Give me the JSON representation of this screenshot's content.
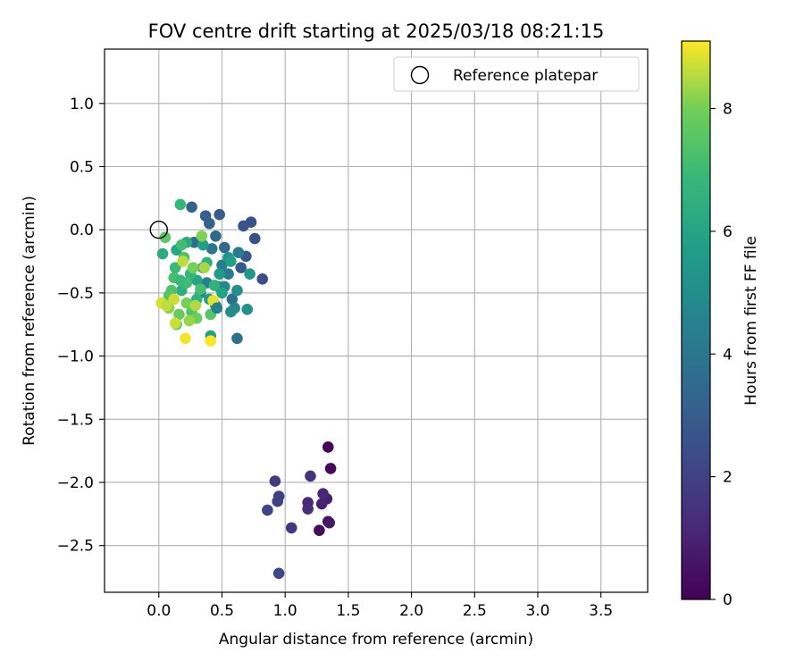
{
  "chart_data": {
    "type": "scatter",
    "title": "FOV centre drift starting at 2025/03/18 08:21:15",
    "xlabel": "Angular distance from reference (arcmin)",
    "ylabel": "Rotation from reference (arcmin)",
    "xlim": [
      -0.43,
      3.87
    ],
    "ylim": [
      -2.87,
      1.43
    ],
    "xticks": [
      0.0,
      0.5,
      1.0,
      1.5,
      2.0,
      2.5,
      3.0,
      3.5
    ],
    "xtick_labels": [
      "0.0",
      "0.5",
      "1.0",
      "1.5",
      "2.0",
      "2.5",
      "3.0",
      "3.5"
    ],
    "yticks": [
      1.0,
      0.5,
      0.0,
      -0.5,
      -1.0,
      -1.5,
      -2.0,
      -2.5
    ],
    "ytick_labels": [
      "1.0",
      "0.5",
      "0.0",
      "−0.5",
      "−1.0",
      "−1.5",
      "−2.0",
      "−2.5"
    ],
    "grid": true,
    "legend": {
      "position": "upper-right",
      "entries": [
        "Reference platepar"
      ]
    },
    "colorbar": {
      "label": "Hours from first FF file",
      "colormap": "viridis",
      "range": [
        0,
        9.1
      ],
      "ticks": [
        0,
        2,
        4,
        6,
        8
      ],
      "tick_labels": [
        "0",
        "2",
        "4",
        "6",
        "8"
      ]
    },
    "reference": {
      "name": "Reference platepar",
      "x": 0.0,
      "y": 0.0
    },
    "series": [
      {
        "points": [
          [
            1.34,
            -1.72,
            0.1
          ],
          [
            1.36,
            -1.89,
            0.2
          ],
          [
            1.27,
            -2.38,
            0.3
          ],
          [
            1.34,
            -2.31,
            0.5
          ],
          [
            1.35,
            -2.32,
            0.6
          ],
          [
            1.33,
            -2.13,
            0.9
          ],
          [
            1.29,
            -2.17,
            1.0
          ],
          [
            1.3,
            -2.09,
            1.1
          ],
          [
            1.18,
            -2.16,
            1.2
          ],
          [
            1.18,
            -2.21,
            1.3
          ],
          [
            1.2,
            -1.95,
            1.5
          ],
          [
            1.05,
            -2.36,
            1.7
          ],
          [
            0.92,
            -1.99,
            1.8
          ],
          [
            0.95,
            -2.11,
            1.9
          ],
          [
            0.94,
            -2.15,
            2.0
          ],
          [
            0.86,
            -2.22,
            2.1
          ],
          [
            0.95,
            -2.72,
            2.2
          ],
          [
            0.82,
            -0.39,
            2.4
          ],
          [
            0.76,
            -0.07,
            2.5
          ],
          [
            0.73,
            0.06,
            2.6
          ],
          [
            0.67,
            0.03,
            2.7
          ],
          [
            0.69,
            -0.21,
            2.8
          ],
          [
            0.65,
            -0.3,
            2.9
          ],
          [
            0.48,
            0.12,
            3.0
          ],
          [
            0.37,
            0.11,
            3.1
          ],
          [
            0.26,
            0.18,
            3.2
          ],
          [
            0.4,
            0.05,
            3.3
          ],
          [
            0.45,
            -0.05,
            3.4
          ],
          [
            0.52,
            -0.14,
            3.5
          ],
          [
            0.28,
            -0.1,
            3.6
          ],
          [
            0.62,
            -0.86,
            3.7
          ],
          [
            0.58,
            -0.55,
            3.8
          ],
          [
            0.47,
            -0.45,
            3.9
          ],
          [
            0.42,
            -0.15,
            4.0
          ],
          [
            0.35,
            -0.3,
            4.1
          ],
          [
            0.55,
            -0.35,
            4.2
          ],
          [
            0.63,
            -0.18,
            4.3
          ],
          [
            0.5,
            -0.28,
            4.4
          ],
          [
            0.38,
            -0.42,
            4.5
          ],
          [
            0.45,
            -0.6,
            4.6
          ],
          [
            0.6,
            -0.62,
            4.7
          ],
          [
            0.52,
            -0.45,
            4.8
          ],
          [
            0.33,
            -0.5,
            4.9
          ],
          [
            0.57,
            -0.65,
            5.0
          ],
          [
            0.62,
            -0.48,
            5.1
          ],
          [
            0.7,
            -0.63,
            5.2
          ],
          [
            0.55,
            -0.22,
            5.3
          ],
          [
            0.72,
            -0.35,
            5.4
          ],
          [
            0.48,
            -0.35,
            5.5
          ],
          [
            0.4,
            -0.55,
            5.6
          ],
          [
            0.35,
            -0.12,
            5.7
          ],
          [
            0.57,
            -0.25,
            5.8
          ],
          [
            0.41,
            -0.84,
            5.9
          ],
          [
            0.3,
            -0.4,
            6.0
          ],
          [
            0.14,
            -0.16,
            6.1
          ],
          [
            0.22,
            -0.1,
            6.2
          ],
          [
            0.03,
            -0.19,
            6.3
          ],
          [
            0.18,
            -0.48,
            6.4
          ],
          [
            0.3,
            -0.55,
            6.5
          ],
          [
            0.38,
            -0.26,
            6.6
          ],
          [
            0.25,
            -0.35,
            6.7
          ],
          [
            0.17,
            0.2,
            6.8
          ],
          [
            0.13,
            -0.3,
            6.9
          ],
          [
            0.22,
            -0.42,
            7.0
          ],
          [
            0.18,
            -0.12,
            7.1
          ],
          [
            0.12,
            -0.38,
            7.2
          ],
          [
            0.1,
            -0.48,
            7.3
          ],
          [
            0.2,
            -0.22,
            7.3
          ],
          [
            0.26,
            -0.65,
            7.4
          ],
          [
            0.08,
            -0.52,
            7.5
          ],
          [
            0.41,
            -0.67,
            7.5
          ],
          [
            0.05,
            -0.06,
            7.6
          ],
          [
            0.14,
            -0.75,
            7.7
          ],
          [
            0.16,
            -0.67,
            7.8
          ],
          [
            0.3,
            -0.7,
            7.9
          ],
          [
            0.22,
            -0.58,
            8.0
          ],
          [
            0.34,
            -0.05,
            8.1
          ],
          [
            0.08,
            -0.62,
            8.2
          ],
          [
            0.24,
            -0.72,
            8.3
          ],
          [
            0.36,
            -0.3,
            8.4
          ],
          [
            0.29,
            -0.6,
            8.5
          ],
          [
            0.19,
            -0.25,
            8.6
          ],
          [
            0.12,
            -0.55,
            8.7
          ],
          [
            0.02,
            -0.58,
            8.8
          ],
          [
            0.43,
            -0.56,
            8.9
          ],
          [
            0.21,
            -0.86,
            9.0
          ],
          [
            0.41,
            -0.88,
            9.1
          ],
          [
            0.13,
            -0.74,
            8.7
          ],
          [
            0.06,
            -0.6,
            8.6
          ],
          [
            0.27,
            -0.3,
            8.0
          ],
          [
            0.33,
            -0.47,
            7.2
          ],
          [
            0.17,
            -0.4,
            6.9
          ],
          [
            0.44,
            -0.44,
            6.6
          ],
          [
            0.5,
            -0.5,
            5.9
          ],
          [
            0.46,
            -0.62,
            4.5
          ]
        ]
      }
    ]
  }
}
